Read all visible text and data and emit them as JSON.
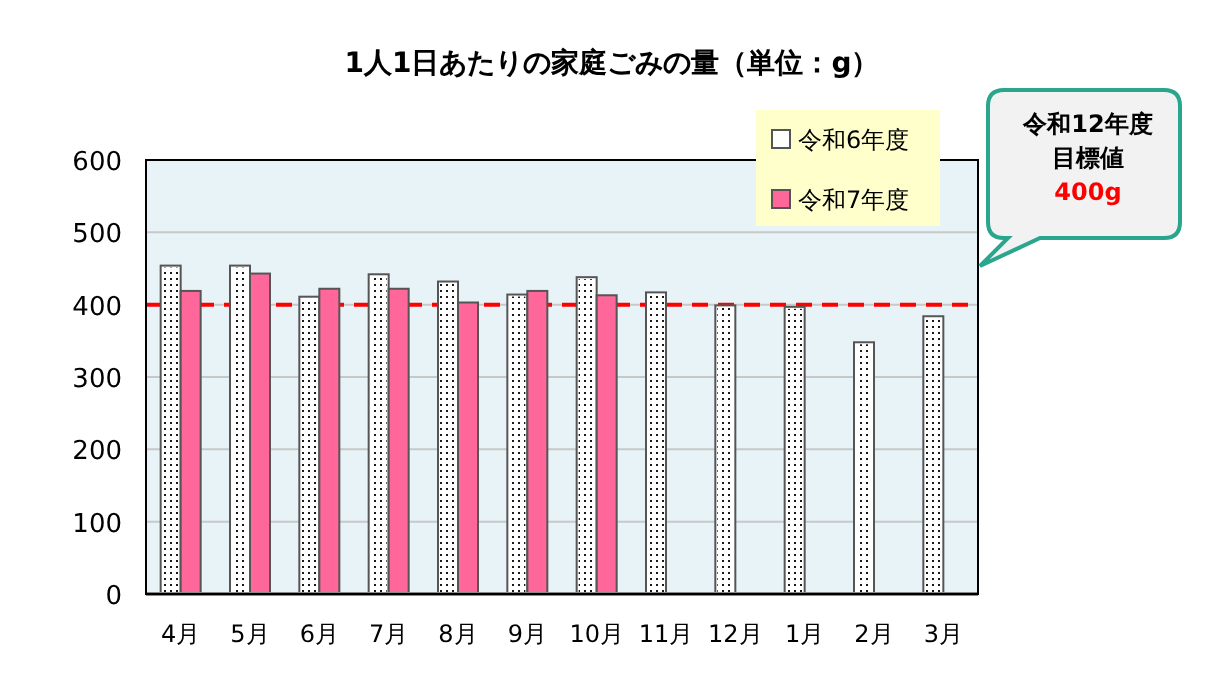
{
  "chart_data": {
    "type": "bar",
    "title": "1人1日あたりの家庭ごみの量（単位：g）",
    "categories": [
      "4月",
      "5月",
      "6月",
      "7月",
      "8月",
      "9月",
      "10月",
      "11月",
      "12月",
      "1月",
      "2月",
      "3月"
    ],
    "series": [
      {
        "name": "令和6年度",
        "color": "#ffffff",
        "values": [
          454,
          454,
          411,
          442,
          432,
          414,
          438,
          417,
          399,
          397,
          348,
          384
        ]
      },
      {
        "name": "令和7年度",
        "color": "#ff6699",
        "values": [
          419,
          443,
          422,
          422,
          403,
          419,
          413,
          null,
          null,
          null,
          null,
          null
        ]
      }
    ],
    "ylim": [
      0,
      600
    ],
    "yticks": [
      0,
      100,
      200,
      300,
      400,
      500,
      600
    ],
    "grid": "y",
    "legend": "top right",
    "ref_lines": [
      {
        "axis": "y",
        "value": 400,
        "color": "#ff0000",
        "line_style": "dashed"
      }
    ],
    "annotations": [
      "令和12年度",
      "目標値",
      "400g"
    ]
  }
}
